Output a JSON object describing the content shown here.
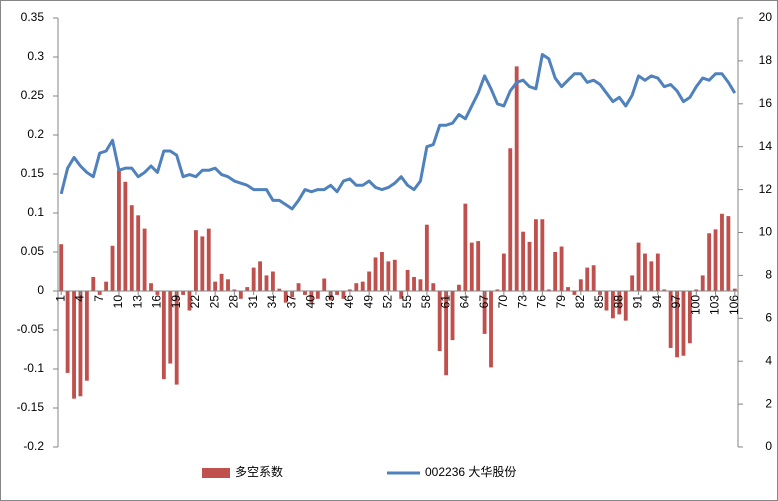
{
  "chart_data": {
    "type": "bar",
    "categories": [
      "1",
      null,
      null,
      "4",
      null,
      null,
      "7",
      null,
      null,
      "10",
      null,
      null,
      "13",
      null,
      null,
      "16",
      null,
      null,
      "19",
      null,
      null,
      "22",
      null,
      null,
      "25",
      null,
      null,
      "28",
      null,
      null,
      "31",
      null,
      null,
      "34",
      null,
      null,
      "37",
      null,
      null,
      "40",
      null,
      null,
      "43",
      null,
      null,
      "46",
      null,
      null,
      "49",
      null,
      null,
      "52",
      null,
      null,
      "55",
      null,
      null,
      "58",
      null,
      null,
      "61",
      null,
      null,
      "64",
      null,
      null,
      "67",
      null,
      null,
      "70",
      null,
      null,
      "73",
      null,
      null,
      "76",
      null,
      null,
      "79",
      null,
      null,
      "82",
      null,
      null,
      "85",
      null,
      null,
      "88",
      null,
      null,
      "91",
      null,
      null,
      "94",
      null,
      null,
      "97",
      null,
      null,
      "100",
      null,
      null,
      "103",
      null,
      null,
      "106"
    ],
    "series": [
      {
        "name": "多空系数",
        "type": "bar",
        "color": "#c0504d",
        "values": [
          0.06,
          -0.105,
          -0.138,
          -0.135,
          -0.115,
          0.018,
          -0.005,
          0.012,
          0.058,
          0.155,
          0.14,
          0.11,
          0.097,
          0.08,
          0.01,
          -0.005,
          -0.113,
          -0.093,
          -0.12,
          -0.005,
          -0.025,
          0.078,
          0.07,
          0.08,
          0.012,
          0.022,
          0.015,
          0.002,
          -0.01,
          0.005,
          0.03,
          0.038,
          0.02,
          0.025,
          0.003,
          -0.015,
          -0.008,
          0.01,
          -0.005,
          -0.015,
          -0.01,
          0.016,
          -0.012,
          -0.005,
          -0.01,
          0.002,
          0.01,
          0.012,
          0.025,
          0.043,
          0.05,
          0.038,
          0.04,
          -0.01,
          0.027,
          0.018,
          0.015,
          0.085,
          0.01,
          -0.077,
          -0.108,
          -0.063,
          0.008,
          0.112,
          0.062,
          0.064,
          -0.055,
          -0.098,
          0.002,
          0.048,
          0.183,
          0.288,
          0.076,
          0.063,
          0.092,
          0.092,
          0.002,
          0.05,
          0.057,
          0.005,
          -0.005,
          0.015,
          0.03,
          0.033,
          -0.005,
          -0.025,
          -0.035,
          -0.03,
          -0.038,
          0.02,
          0.062,
          0.048,
          0.038,
          0.048,
          0.002,
          -0.073,
          -0.085,
          -0.083,
          -0.067,
          0.002,
          0.02,
          0.074,
          0.079,
          0.099,
          0.096,
          0.003
        ]
      },
      {
        "name": "002236 大华股份",
        "type": "line",
        "axis": "y2",
        "color": "#4f81bd",
        "values": [
          11.8,
          13.0,
          13.5,
          13.1,
          12.8,
          12.6,
          13.7,
          13.8,
          14.3,
          12.9,
          13.0,
          13.0,
          12.6,
          12.8,
          13.1,
          12.8,
          13.8,
          13.8,
          13.6,
          12.6,
          12.7,
          12.6,
          12.9,
          12.9,
          13.0,
          12.7,
          12.6,
          12.4,
          12.3,
          12.2,
          12.0,
          12.0,
          12.0,
          11.5,
          11.5,
          11.3,
          11.1,
          11.5,
          12.0,
          11.9,
          12.0,
          12.0,
          12.2,
          11.9,
          12.4,
          12.5,
          12.2,
          12.2,
          12.4,
          12.1,
          12.0,
          12.1,
          12.3,
          12.6,
          12.2,
          12.0,
          12.4,
          14.0,
          14.1,
          15.0,
          15.0,
          15.1,
          15.5,
          15.3,
          15.9,
          16.5,
          17.3,
          16.7,
          16.0,
          15.9,
          16.6,
          17.0,
          17.1,
          16.8,
          16.7,
          18.3,
          18.1,
          17.2,
          16.8,
          17.1,
          17.4,
          17.4,
          17.0,
          17.1,
          16.9,
          16.5,
          16.1,
          16.3,
          15.9,
          16.4,
          17.3,
          17.1,
          17.3,
          17.2,
          16.8,
          16.9,
          16.6,
          16.1,
          16.3,
          16.8,
          17.2,
          17.1,
          17.4,
          17.4,
          17.0,
          16.5
        ]
      }
    ],
    "ylim": [
      -0.2,
      0.35
    ],
    "yticks": [
      -0.2,
      -0.15,
      -0.1,
      -0.05,
      0,
      0.05,
      0.1,
      0.15,
      0.2,
      0.25,
      0.3,
      0.35
    ],
    "y2lim": [
      0,
      20
    ],
    "y2ticks": [
      0,
      2,
      4,
      6,
      8,
      10,
      12,
      14,
      16,
      18,
      20
    ],
    "legend": "bottom"
  }
}
